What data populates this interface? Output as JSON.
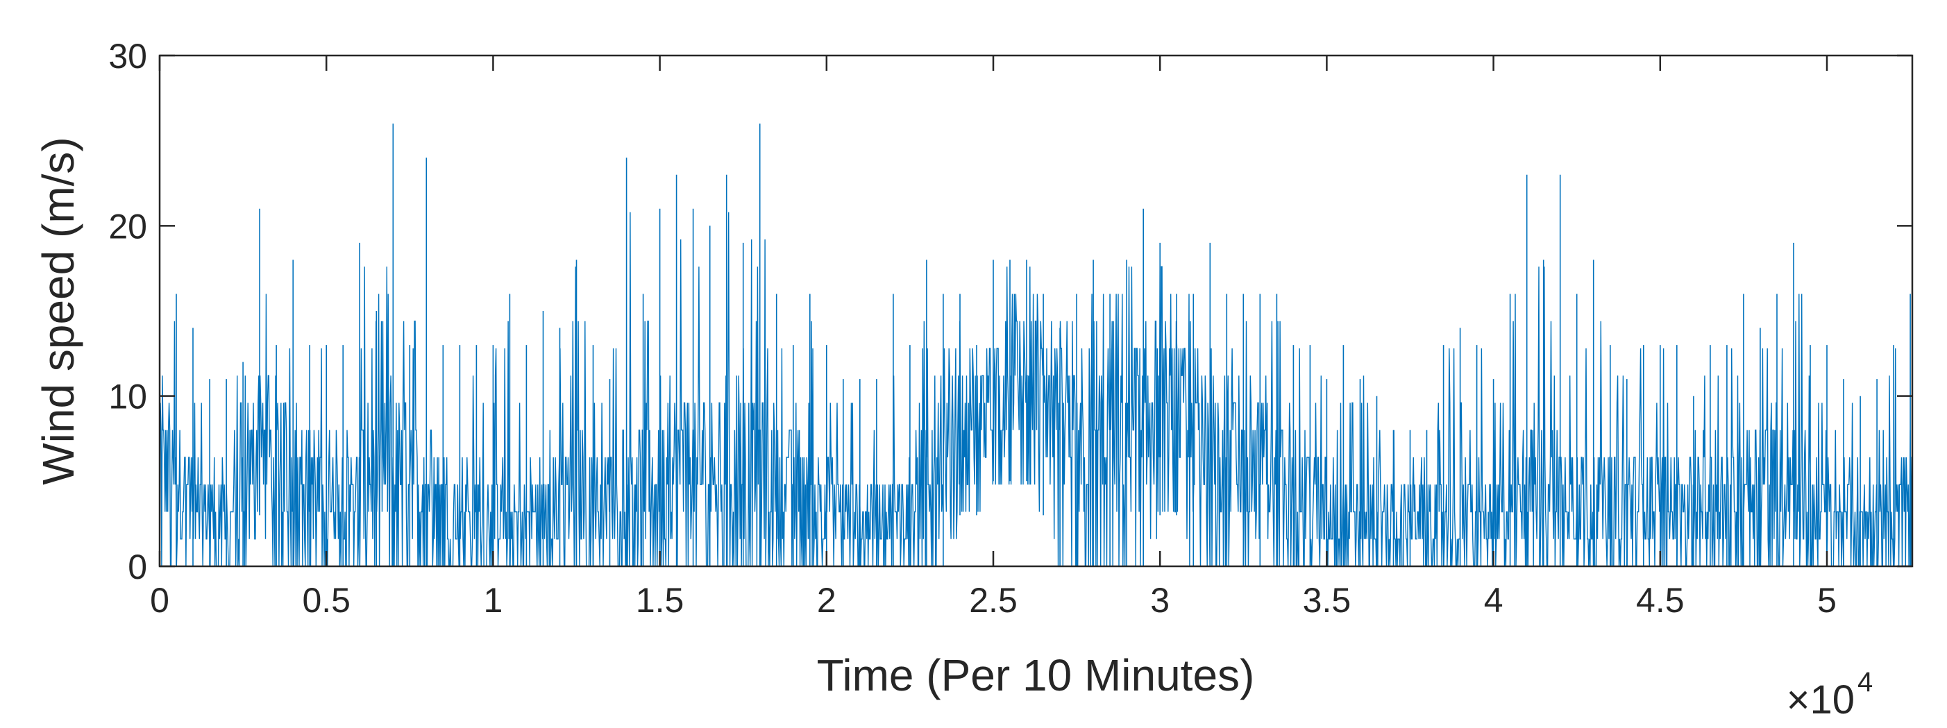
{
  "chart_data": {
    "type": "line",
    "title": "",
    "xlabel": "Time (Per 10 Minutes)",
    "ylabel": "Wind speed (m/s)",
    "x_exponent_label": {
      "times": "×10",
      "power": "4"
    },
    "x_scale_multiplier": 10000,
    "xlim": [
      0,
      5.256
    ],
    "ylim": [
      0,
      30
    ],
    "x_ticks": [
      0,
      0.5,
      1,
      1.5,
      2,
      2.5,
      3,
      3.5,
      4,
      4.5,
      5
    ],
    "x_tick_labels": [
      "0",
      "0.5",
      "1",
      "1.5",
      "2",
      "2.5",
      "3",
      "3.5",
      "4",
      "4.5",
      "5"
    ],
    "y_ticks": [
      0,
      10,
      20,
      30
    ],
    "y_tick_labels": [
      "0",
      "10",
      "20",
      "30"
    ],
    "grid": false,
    "legend": "none",
    "series_color": "#0072BD",
    "series": [
      {
        "x": [
          0.0,
          0.05,
          0.1,
          0.15,
          0.2,
          0.25,
          0.3,
          0.35,
          0.4,
          0.45,
          0.5,
          0.55,
          0.6,
          0.65,
          0.7,
          0.75,
          0.8,
          0.85,
          0.9,
          0.95,
          1.0,
          1.05,
          1.1,
          1.15,
          1.2,
          1.25,
          1.3,
          1.35,
          1.4,
          1.45,
          1.5,
          1.55,
          1.6,
          1.65,
          1.7,
          1.75,
          1.8,
          1.85,
          1.9,
          1.95,
          2.0,
          2.05,
          2.1,
          2.15,
          2.2,
          2.25,
          2.3,
          2.35,
          2.4,
          2.45,
          2.5,
          2.55,
          2.6,
          2.65,
          2.7,
          2.75,
          2.8,
          2.85,
          2.9,
          2.95,
          3.0,
          3.05,
          3.1,
          3.15,
          3.2,
          3.25,
          3.3,
          3.35,
          3.4,
          3.45,
          3.5,
          3.55,
          3.6,
          3.65,
          3.7,
          3.75,
          3.8,
          3.85,
          3.9,
          3.95,
          4.0,
          4.05,
          4.1,
          4.15,
          4.2,
          4.25,
          4.3,
          4.35,
          4.4,
          4.45,
          4.5,
          4.55,
          4.6,
          4.65,
          4.7,
          4.75,
          4.8,
          4.85,
          4.9,
          4.95,
          5.0,
          5.05,
          5.1,
          5.15,
          5.2,
          5.25
        ],
        "upper": [
          13,
          16,
          14,
          11,
          11,
          12,
          21,
          13,
          18,
          13,
          13,
          13,
          19,
          15,
          26,
          13,
          24,
          13,
          13,
          13,
          13,
          16,
          13,
          15,
          14,
          18,
          13,
          11,
          24,
          16,
          21,
          23,
          21,
          20,
          23,
          19,
          26,
          16,
          13,
          16,
          13,
          11,
          11,
          11,
          16,
          13,
          18,
          16,
          16,
          13,
          18,
          18,
          18,
          16,
          14,
          16,
          18,
          16,
          18,
          21,
          19,
          16,
          16,
          19,
          16,
          16,
          16,
          16,
          13,
          13,
          11,
          13,
          11,
          10,
          8,
          8,
          8,
          13,
          14,
          13,
          11,
          16,
          23,
          18,
          23,
          16,
          18,
          13,
          11,
          13,
          13,
          13,
          10,
          13,
          13,
          16,
          14,
          16,
          19,
          13,
          13,
          11,
          10,
          11,
          13,
          16
        ],
        "base": [
          6,
          5,
          4,
          3,
          3,
          3,
          9,
          6,
          6,
          5,
          4,
          4,
          5,
          5,
          6,
          6,
          5,
          4,
          3,
          3,
          3,
          3,
          3,
          3,
          4,
          5,
          4,
          4,
          6,
          5,
          5,
          6,
          6,
          6,
          6,
          6,
          6,
          5,
          5,
          4,
          4,
          3,
          3,
          3,
          3,
          4,
          6,
          6,
          8,
          8,
          10,
          11,
          11,
          11,
          8,
          7,
          8,
          8,
          8,
          9,
          10,
          9,
          8,
          8,
          7,
          6,
          6,
          6,
          5,
          4,
          3,
          3,
          3,
          3,
          3,
          3,
          3,
          3,
          3,
          3,
          3,
          3,
          5,
          5,
          5,
          4,
          4,
          4,
          4,
          4,
          4,
          4,
          4,
          4,
          4,
          5,
          6,
          6,
          5,
          4,
          3,
          3,
          2,
          3,
          4,
          4
        ],
        "lower": [
          0,
          0,
          0,
          0,
          0,
          0,
          3,
          0,
          0,
          0,
          0,
          0,
          0,
          0,
          0,
          0,
          0,
          0,
          0,
          0,
          0,
          0,
          0,
          0,
          0,
          0,
          0,
          0,
          0,
          0,
          0,
          0,
          0,
          0,
          0,
          0,
          0,
          0,
          0,
          0,
          0,
          0,
          0,
          0,
          0,
          0,
          0,
          0,
          3,
          3,
          5,
          5,
          5,
          3,
          0,
          0,
          0,
          0,
          0,
          0,
          3,
          3,
          0,
          0,
          0,
          0,
          0,
          0,
          0,
          0,
          0,
          0,
          0,
          0,
          0,
          0,
          0,
          0,
          0,
          0,
          0,
          0,
          0,
          0,
          0,
          0,
          0,
          0,
          0,
          0,
          0,
          0,
          0,
          0,
          0,
          0,
          0,
          0,
          0,
          0,
          0,
          0,
          0,
          0,
          0,
          0
        ]
      }
    ]
  }
}
